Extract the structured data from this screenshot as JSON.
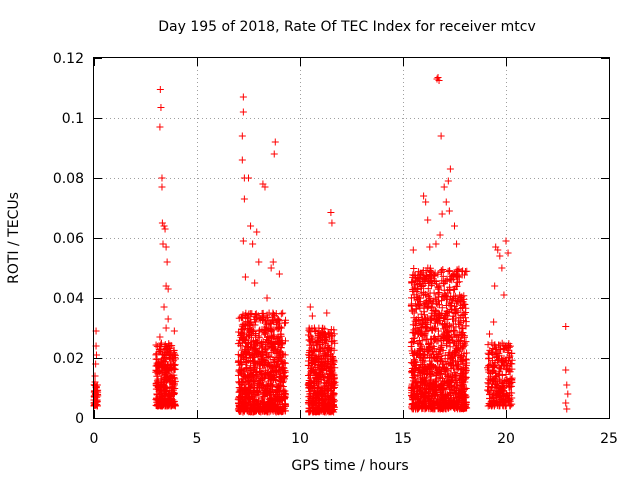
{
  "chart_data": {
    "type": "scatter",
    "title": "Day 195 of 2018, Rate Of TEC Index for receiver mtcv",
    "xlabel": "GPS time / hours",
    "ylabel": "ROTI / TECUs",
    "xlim": [
      0,
      25
    ],
    "ylim": [
      0,
      0.12
    ],
    "xticks": [
      0,
      5,
      10,
      15,
      20,
      25
    ],
    "xtick_labels": [
      "0",
      "5",
      "10",
      "15",
      "20",
      "25"
    ],
    "yticks": [
      0,
      0.02,
      0.04,
      0.06,
      0.08,
      0.1,
      0.12
    ],
    "ytick_labels": [
      "0",
      "0.02",
      "0.04",
      "0.06",
      "0.08",
      "0.1",
      "0.12"
    ],
    "grid": true,
    "marker": "+",
    "color": "#ff0000",
    "series": [
      {
        "name": "ROTI",
        "points": [
          [
            0.0,
            0.006
          ],
          [
            0.0,
            0.005
          ],
          [
            0.02,
            0.007
          ],
          [
            0.03,
            0.009
          ],
          [
            0.05,
            0.012
          ],
          [
            0.05,
            0.014
          ],
          [
            0.08,
            0.018
          ],
          [
            0.1,
            0.024
          ],
          [
            0.1,
            0.029
          ],
          [
            0.12,
            0.021
          ],
          [
            0.15,
            0.011
          ],
          [
            0.15,
            0.006
          ],
          [
            3.05,
            0.008
          ],
          [
            3.1,
            0.012
          ],
          [
            3.12,
            0.018
          ],
          [
            3.15,
            0.022
          ],
          [
            3.2,
            0.027
          ],
          [
            3.2,
            0.015
          ],
          [
            3.22,
            0.1095
          ],
          [
            3.25,
            0.1035
          ],
          [
            3.2,
            0.097
          ],
          [
            3.3,
            0.08
          ],
          [
            3.3,
            0.077
          ],
          [
            3.32,
            0.065
          ],
          [
            3.4,
            0.064
          ],
          [
            3.45,
            0.063
          ],
          [
            3.35,
            0.058
          ],
          [
            3.5,
            0.057
          ],
          [
            3.55,
            0.052
          ],
          [
            3.5,
            0.044
          ],
          [
            3.6,
            0.043
          ],
          [
            3.4,
            0.037
          ],
          [
            3.6,
            0.033
          ],
          [
            3.5,
            0.03
          ],
          [
            3.7,
            0.024
          ],
          [
            3.75,
            0.018
          ],
          [
            3.8,
            0.012
          ],
          [
            3.9,
            0.029
          ],
          [
            3.85,
            0.008
          ],
          [
            3.3,
            0.006
          ],
          [
            3.6,
            0.005
          ],
          [
            3.45,
            0.01
          ],
          [
            7.05,
            0.005
          ],
          [
            7.1,
            0.01
          ],
          [
            7.15,
            0.018
          ],
          [
            7.2,
            0.025
          ],
          [
            7.2,
            0.031
          ],
          [
            7.25,
            0.107
          ],
          [
            7.25,
            0.102
          ],
          [
            7.2,
            0.094
          ],
          [
            7.2,
            0.086
          ],
          [
            7.3,
            0.08
          ],
          [
            7.3,
            0.073
          ],
          [
            7.25,
            0.059
          ],
          [
            7.35,
            0.047
          ],
          [
            7.5,
            0.08
          ],
          [
            7.6,
            0.064
          ],
          [
            7.7,
            0.058
          ],
          [
            7.8,
            0.045
          ],
          [
            7.9,
            0.062
          ],
          [
            8.0,
            0.052
          ],
          [
            8.2,
            0.078
          ],
          [
            8.3,
            0.077
          ],
          [
            8.4,
            0.04
          ],
          [
            8.5,
            0.035
          ],
          [
            8.6,
            0.05
          ],
          [
            8.8,
            0.092
          ],
          [
            8.75,
            0.088
          ],
          [
            8.7,
            0.052
          ],
          [
            9.0,
            0.048
          ],
          [
            9.1,
            0.03
          ],
          [
            9.2,
            0.015
          ],
          [
            7.5,
            0.01
          ],
          [
            7.8,
            0.006
          ],
          [
            8.0,
            0.012
          ],
          [
            8.3,
            0.008
          ],
          [
            8.6,
            0.004
          ],
          [
            8.9,
            0.009
          ],
          [
            9.1,
            0.006
          ],
          [
            7.4,
            0.02
          ],
          [
            7.9,
            0.022
          ],
          [
            8.4,
            0.018
          ],
          [
            8.8,
            0.025
          ],
          [
            9.0,
            0.02
          ],
          [
            10.5,
            0.037
          ],
          [
            10.6,
            0.034
          ],
          [
            10.7,
            0.03
          ],
          [
            10.8,
            0.025
          ],
          [
            10.9,
            0.02
          ],
          [
            11.0,
            0.015
          ],
          [
            11.2,
            0.01
          ],
          [
            11.3,
            0.035
          ],
          [
            11.4,
            0.028
          ],
          [
            11.5,
            0.0685
          ],
          [
            11.55,
            0.065
          ],
          [
            11.6,
            0.02
          ],
          [
            10.6,
            0.005
          ],
          [
            10.9,
            0.004
          ],
          [
            11.1,
            0.008
          ],
          [
            11.4,
            0.006
          ],
          [
            10.7,
            0.012
          ],
          [
            11.2,
            0.018
          ],
          [
            15.5,
            0.056
          ],
          [
            15.6,
            0.046
          ],
          [
            15.8,
            0.04
          ],
          [
            15.9,
            0.03
          ],
          [
            16.0,
            0.074
          ],
          [
            16.1,
            0.072
          ],
          [
            16.2,
            0.066
          ],
          [
            16.3,
            0.057
          ],
          [
            16.6,
            0.058
          ],
          [
            16.8,
            0.061
          ],
          [
            16.9,
            0.068
          ],
          [
            17.0,
            0.077
          ],
          [
            17.1,
            0.072
          ],
          [
            17.2,
            0.079
          ],
          [
            17.3,
            0.083
          ],
          [
            17.25,
            0.069
          ],
          [
            17.5,
            0.064
          ],
          [
            17.6,
            0.058
          ],
          [
            16.7,
            0.1135
          ],
          [
            16.75,
            0.1125
          ],
          [
            16.65,
            0.113
          ],
          [
            16.85,
            0.094
          ],
          [
            17.8,
            0.04
          ],
          [
            17.9,
            0.03
          ],
          [
            15.6,
            0.012
          ],
          [
            15.9,
            0.008
          ],
          [
            16.2,
            0.015
          ],
          [
            16.5,
            0.02
          ],
          [
            16.8,
            0.01
          ],
          [
            17.1,
            0.006
          ],
          [
            17.4,
            0.014
          ],
          [
            17.7,
            0.009
          ],
          [
            18.0,
            0.012
          ],
          [
            16.4,
            0.025
          ],
          [
            17.0,
            0.028
          ],
          [
            17.5,
            0.022
          ],
          [
            19.2,
            0.028
          ],
          [
            19.3,
            0.022
          ],
          [
            19.4,
            0.032
          ],
          [
            19.45,
            0.044
          ],
          [
            19.5,
            0.057
          ],
          [
            19.6,
            0.056
          ],
          [
            19.7,
            0.054
          ],
          [
            19.8,
            0.05
          ],
          [
            19.9,
            0.041
          ],
          [
            20.0,
            0.059
          ],
          [
            20.1,
            0.055
          ],
          [
            20.2,
            0.018
          ],
          [
            19.3,
            0.01
          ],
          [
            19.6,
            0.008
          ],
          [
            19.9,
            0.012
          ],
          [
            20.1,
            0.006
          ],
          [
            20.2,
            0.004
          ],
          [
            19.5,
            0.015
          ],
          [
            22.9,
            0.0305
          ],
          [
            22.9,
            0.016
          ],
          [
            22.95,
            0.011
          ],
          [
            23.0,
            0.008
          ],
          [
            22.9,
            0.005
          ],
          [
            22.95,
            0.003
          ]
        ],
        "dense_clusters": [
          {
            "x": [
              0.0,
              0.2
            ],
            "y": [
              0.004,
              0.012
            ],
            "count": 40
          },
          {
            "x": [
              3.0,
              3.95
            ],
            "y": [
              0.004,
              0.025
            ],
            "count": 320
          },
          {
            "x": [
              7.0,
              9.3
            ],
            "y": [
              0.002,
              0.035
            ],
            "count": 900
          },
          {
            "x": [
              10.4,
              11.7
            ],
            "y": [
              0.002,
              0.03
            ],
            "count": 520
          },
          {
            "x": [
              15.4,
              18.1
            ],
            "y": [
              0.003,
              0.05
            ],
            "count": 1200
          },
          {
            "x": [
              19.1,
              20.3
            ],
            "y": [
              0.004,
              0.025
            ],
            "count": 260
          }
        ]
      }
    ]
  }
}
